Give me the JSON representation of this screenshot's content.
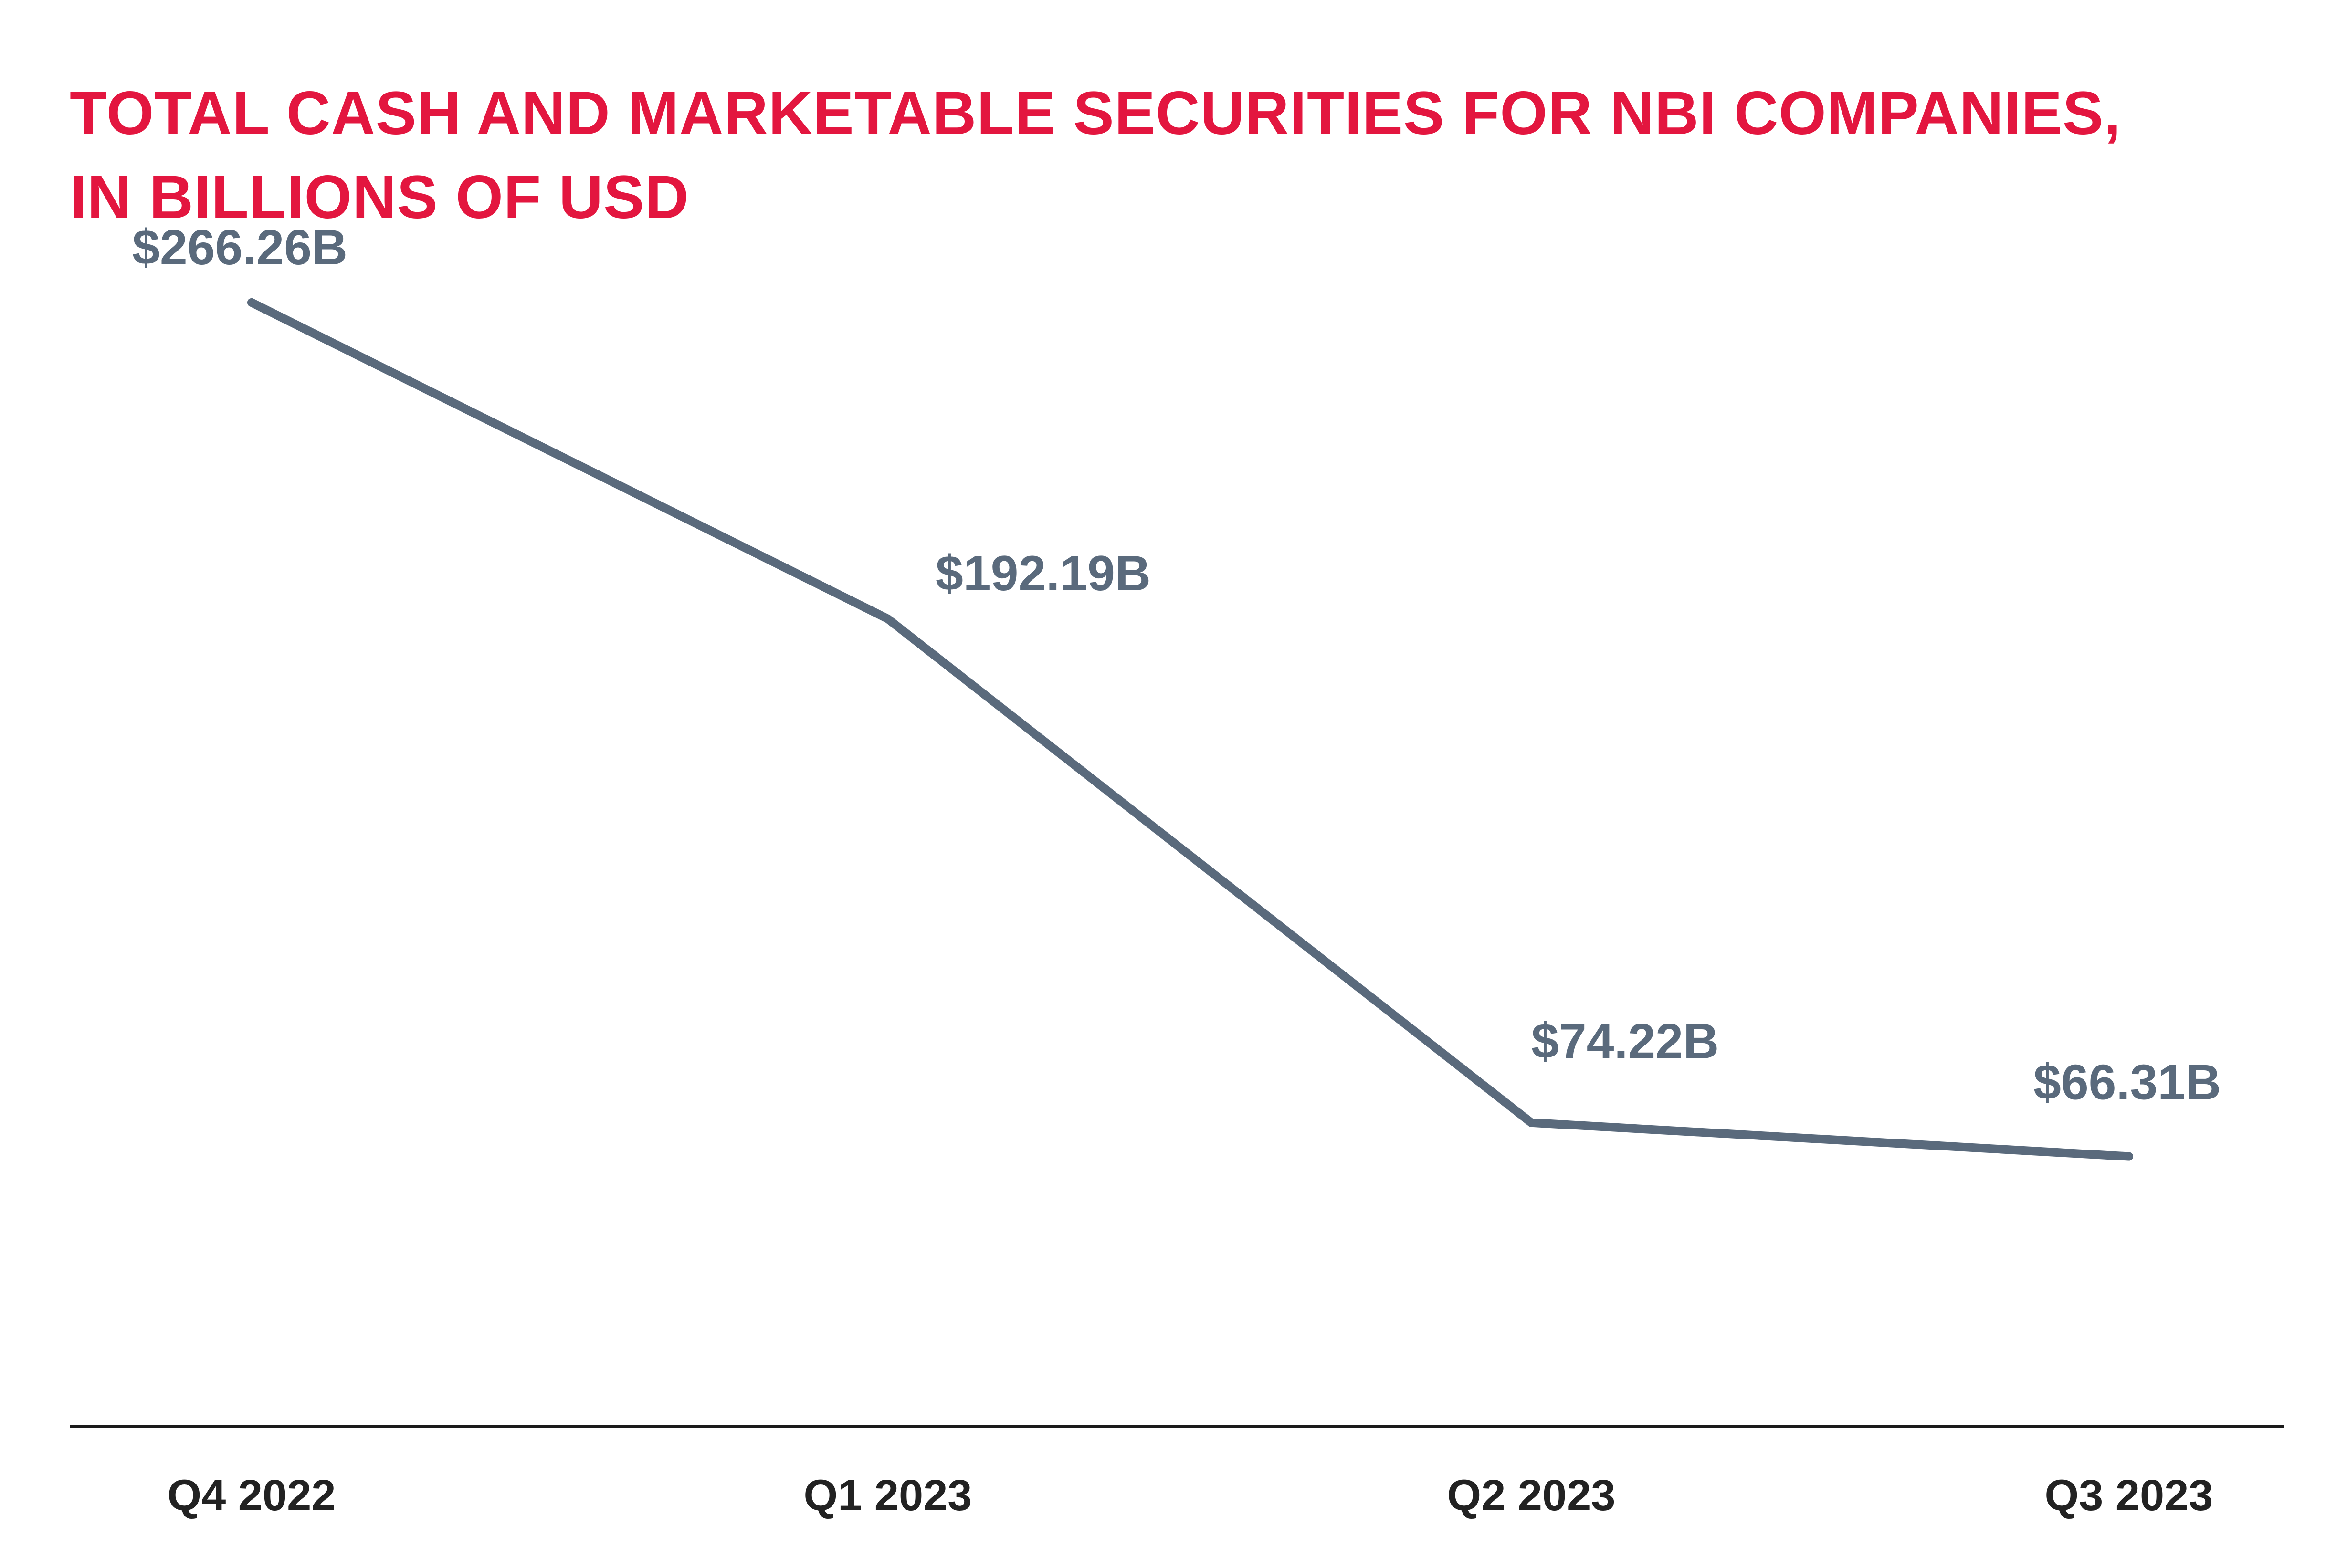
{
  "chart_data": {
    "type": "line",
    "title_lines": [
      "TOTAL CASH AND MARKETABLE SECURITIES FOR NBI COMPANIES,",
      "IN BILLIONS OF USD"
    ],
    "categories": [
      "Q4 2022",
      "Q1 2023",
      "Q2 2023",
      "Q3 2023"
    ],
    "series": [
      {
        "values": [
          266.26,
          192.19,
          74.22,
          66.31
        ],
        "labels": [
          "$266.26B",
          "$192.19B",
          "$74.22B",
          "$66.31B"
        ]
      }
    ],
    "xlabel": "",
    "ylabel": "",
    "ylim": [
      0,
      300
    ],
    "grid": false,
    "legend": "none",
    "colors": {
      "title": "#e3163f",
      "line": "#5a6a7c",
      "data_label": "#5a6a7c",
      "axis": "#1a1a1a",
      "tick_label": "#222222"
    }
  }
}
